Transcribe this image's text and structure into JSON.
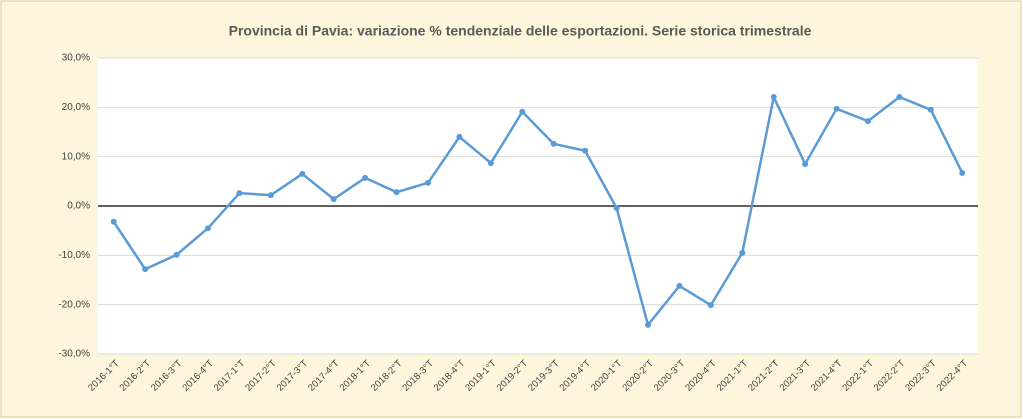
{
  "chart_data": {
    "type": "line",
    "title": "Provincia di Pavia: variazione % tendenziale delle esportazioni. Serie storica trimestrale",
    "categories": [
      "2016-1°T",
      "2016-2°T",
      "2016-3°T",
      "2016-4°T",
      "2017-1°T",
      "2017-2°T",
      "2017-3°T",
      "2017-4°T",
      "2018-1°T",
      "2018-2°T",
      "2018-3°T",
      "2018-4°T",
      "2019-1°T",
      "2019-2°T",
      "2019-3°T",
      "2019-4°T",
      "2020-1°T",
      "2020-2°T",
      "2020-3°T",
      "2020-4°T",
      "2021-1°T",
      "2021-2°T",
      "2021-3°T",
      "2021-4°T",
      "2022-1°T",
      "2022-2°T",
      "2022-3°T",
      "2022-4°T"
    ],
    "values": [
      -3.2,
      -12.8,
      -9.9,
      -4.5,
      2.6,
      2.2,
      6.5,
      1.4,
      5.7,
      2.8,
      4.7,
      14.0,
      8.7,
      19.1,
      12.6,
      11.2,
      -0.4,
      -24.1,
      -16.2,
      -20.1,
      -9.5,
      22.1,
      8.5,
      19.7,
      17.2,
      22.1,
      19.5,
      6.7
    ],
    "color": "#5b9bd5",
    "ylim": [
      -30,
      30
    ],
    "yticks": [
      {
        "value": -30,
        "label": "-30,0%"
      },
      {
        "value": -20,
        "label": "-20,0%"
      },
      {
        "value": -10,
        "label": "-10,0%"
      },
      {
        "value": 0,
        "label": "0,0%"
      },
      {
        "value": 10,
        "label": "10,0%"
      },
      {
        "value": 20,
        "label": "20,0%"
      },
      {
        "value": 30,
        "label": "30,0%"
      }
    ],
    "grid": true
  }
}
